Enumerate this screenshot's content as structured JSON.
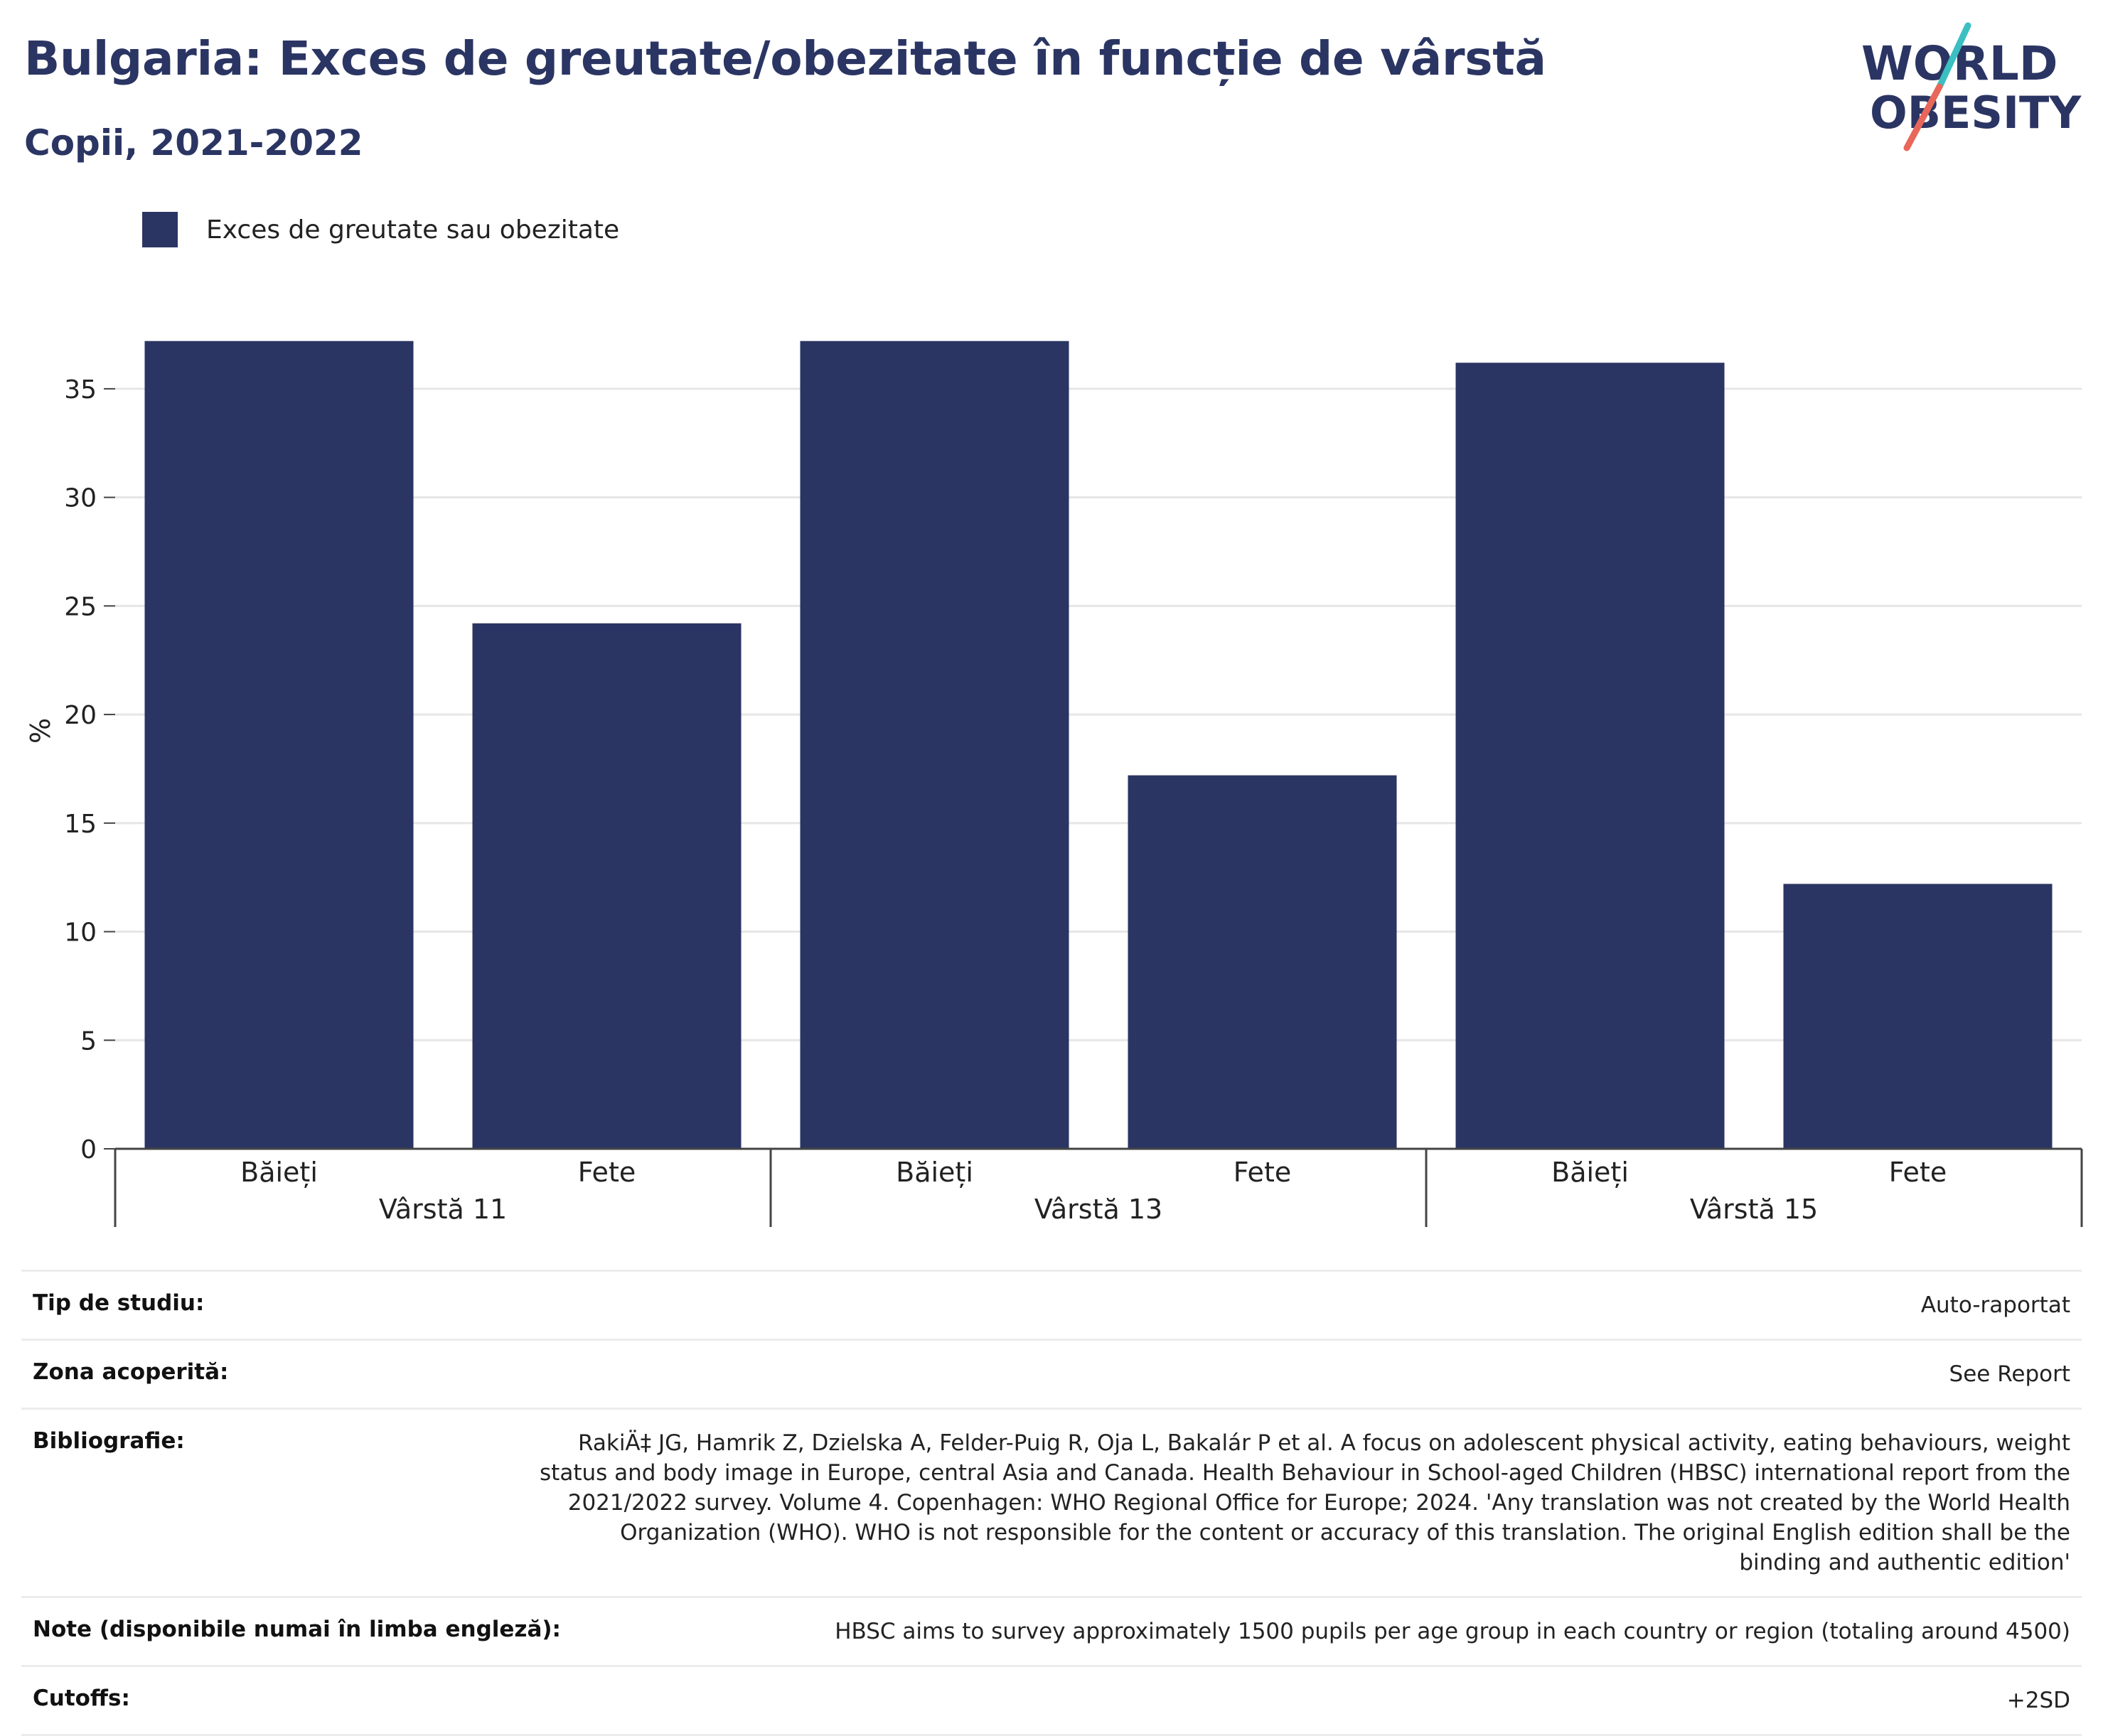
{
  "header": {
    "title": "Bulgaria: Exces de greutate/obezitate în funcție de vârstă",
    "subtitle": "Copii, 2021-2022"
  },
  "logo": {
    "line1": "WORLD",
    "line2": "OBESITY",
    "colors": {
      "text": "#2b3563",
      "slash_top": "#3bbfc1",
      "slash_bottom": "#e8675a"
    }
  },
  "chart_data": {
    "type": "bar",
    "legend": [
      "Exces de greutate sau obezitate"
    ],
    "legend_position": "top-left",
    "ylabel": "%",
    "ylim": [
      0,
      38.5
    ],
    "yticks": [
      0,
      5,
      10,
      15,
      20,
      25,
      30,
      35
    ],
    "grid": true,
    "bar_color": "#2b3563",
    "groups": [
      "Vârstă 11",
      "Vârstă 13",
      "Vârstă 15"
    ],
    "categories": [
      "Băieți",
      "Fete",
      "Băieți",
      "Fete",
      "Băieți",
      "Fete"
    ],
    "series": [
      {
        "name": "Exces de greutate sau obezitate",
        "values": [
          37.2,
          24.2,
          37.2,
          17.2,
          36.2,
          12.2
        ]
      }
    ]
  },
  "meta": [
    {
      "key": "Tip de studiu:",
      "value": "Auto-raportat"
    },
    {
      "key": "Zona acoperită:",
      "value": "See Report"
    },
    {
      "key": "Bibliografie:",
      "value": "RakiÄ‡ JG, Hamrik Z, Dzielska A, Felder-Puig R, Oja L, Bakalár P et al. A focus on adolescent physical activity, eating behaviours, weight status and body image in Europe, central Asia and Canada. Health Behaviour in School-aged Children (HBSC) international report from the 2021/2022 survey. Volume 4. Copenhagen: WHO Regional Office for Europe; 2024. 'Any translation was not created by the World Health Organization (WHO). WHO is not responsible for the content or accuracy of this translation. The original English edition shall be the binding and authentic edition'"
    },
    {
      "key": "Note (disponibile numai în limba engleză):",
      "value": "HBSC aims to survey approximately 1500 pupils per age group in each country or region (totaling around 4500)"
    },
    {
      "key": "Cutoffs:",
      "value": "+2SD"
    }
  ]
}
